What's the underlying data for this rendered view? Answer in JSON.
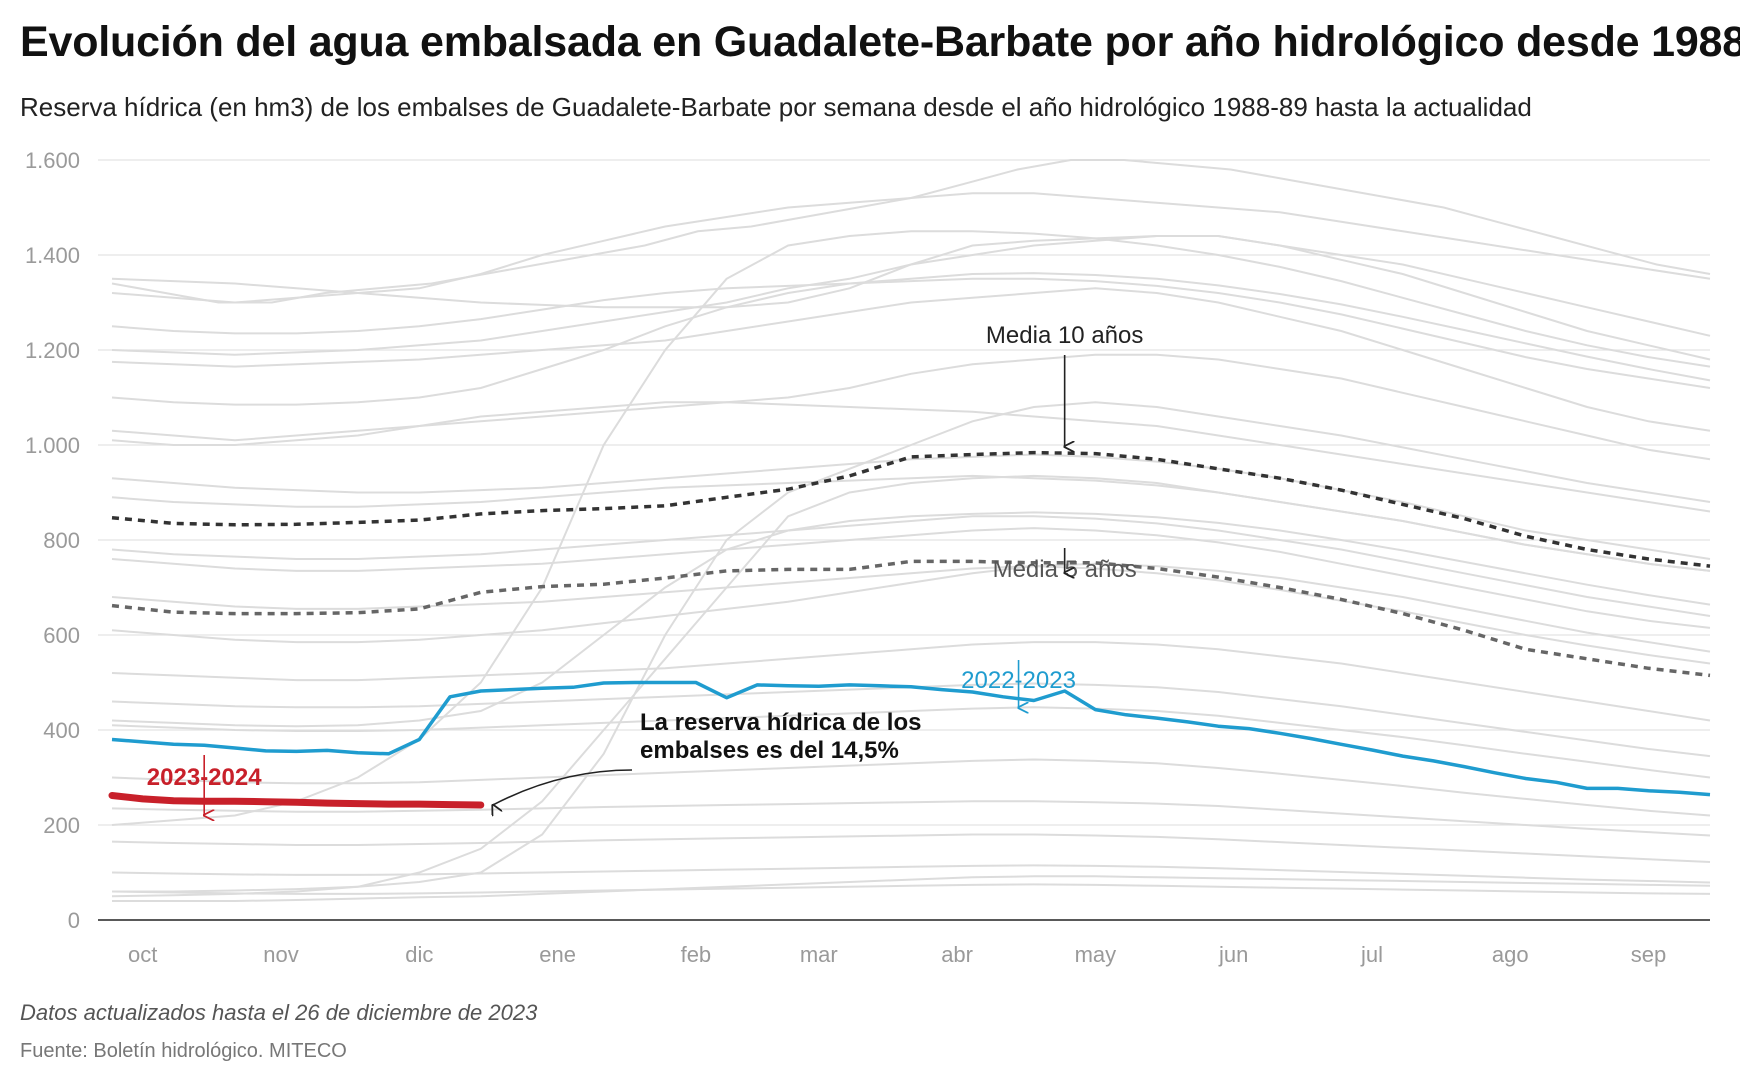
{
  "header": {
    "title": "Evolución del agua embalsada en Guadalete-Barbate por año hidrológico desde 1988",
    "subtitle": "Reserva hídrica (en hm3) de los embalses de Guadalete-Barbate por semana desde el año hidrológico 1988-89 hasta la actualidad"
  },
  "footer": {
    "note": "Datos actualizados hasta el 26 de diciembre de 2023",
    "source": "Fuente: Boletín hidrológico. MITECO"
  },
  "colors": {
    "background_series": "#dcdcdc",
    "current_year": "#c8202a",
    "previous_year": "#1f9ccf",
    "mean_10": "#333333",
    "mean_5": "#666666",
    "grid": "#e3e3e3",
    "ticks": "#9a9a9a"
  },
  "chart_data": {
    "type": "line",
    "x_unit": "semana del año hidrológico (oct–sep)",
    "xlim": [
      0,
      52
    ],
    "ylim": [
      0,
      1600
    ],
    "y_ticks": [
      0,
      200,
      400,
      600,
      800,
      1000,
      1200,
      1400,
      1600
    ],
    "y_tick_labels": [
      "0",
      "200",
      "400",
      "600",
      "800",
      "1.000",
      "1.200",
      "1.400",
      "1.600"
    ],
    "x_ticks": [
      1,
      5.5,
      10,
      14.5,
      19,
      23,
      27.5,
      32,
      36.5,
      41,
      45.5,
      50
    ],
    "x_tick_labels": [
      "oct",
      "nov",
      "dic",
      "ene",
      "feb",
      "mar",
      "abr",
      "may",
      "jun",
      "jul",
      "ago",
      "sep"
    ],
    "grid": true,
    "legend": "none",
    "highlighted_series": [
      {
        "name": "2023-2024",
        "role": "current",
        "x": [
          0,
          1,
          2,
          3,
          4,
          5,
          6,
          7,
          8,
          9,
          10,
          11,
          12
        ],
        "values": [
          262,
          255,
          251,
          250,
          250,
          249,
          248,
          246,
          245,
          244,
          244,
          243,
          242
        ]
      },
      {
        "name": "2022-2023",
        "role": "previous",
        "x": [
          0,
          1,
          2,
          3,
          4,
          5,
          6,
          7,
          8,
          9,
          10,
          11,
          12,
          13,
          14,
          15,
          16,
          17,
          18,
          19,
          20,
          21,
          22,
          23,
          24,
          25,
          26,
          27,
          28,
          29,
          30,
          31,
          32,
          33,
          34,
          35,
          36,
          37,
          38,
          39,
          40,
          41,
          42,
          43,
          44,
          45,
          46,
          47,
          48,
          49,
          50,
          51,
          52
        ],
        "values": [
          380,
          375,
          370,
          368,
          362,
          356,
          355,
          357,
          352,
          350,
          380,
          470,
          482,
          485,
          488,
          490,
          499,
          500,
          500,
          500,
          468,
          495,
          493,
          492,
          495,
          493,
          491,
          485,
          480,
          470,
          462,
          482,
          443,
          432,
          425,
          417,
          408,
          403,
          393,
          382,
          370,
          358,
          345,
          335,
          323,
          310,
          298,
          290,
          277,
          277,
          272,
          269,
          264
        ]
      }
    ],
    "reference_series": [
      {
        "name": "Media 10 años",
        "x": [
          0,
          2,
          4,
          6,
          8,
          10,
          12,
          14,
          16,
          18,
          20,
          22,
          24,
          26,
          28,
          30,
          32,
          34,
          36,
          38,
          40,
          42,
          44,
          46,
          48,
          50,
          52
        ],
        "values": [
          847,
          835,
          832,
          833,
          837,
          842,
          855,
          862,
          866,
          872,
          890,
          907,
          935,
          975,
          980,
          984,
          982,
          970,
          950,
          930,
          905,
          875,
          845,
          808,
          780,
          760,
          745
        ]
      },
      {
        "name": "Media 5 años",
        "x": [
          0,
          2,
          4,
          6,
          8,
          10,
          12,
          14,
          16,
          18,
          20,
          22,
          24,
          26,
          28,
          30,
          32,
          34,
          36,
          38,
          40,
          42,
          44,
          46,
          48,
          50,
          52
        ],
        "values": [
          662,
          648,
          645,
          645,
          647,
          655,
          690,
          702,
          707,
          720,
          735,
          738,
          738,
          755,
          755,
          752,
          752,
          740,
          722,
          700,
          675,
          645,
          610,
          570,
          550,
          530,
          515
        ]
      }
    ],
    "background_series": [
      {
        "values": [
          1340,
          1320,
          1300,
          1300,
          1320,
          1330,
          1340,
          1360,
          1380,
          1400,
          1420,
          1450,
          1460,
          1480,
          1500,
          1520,
          1550,
          1580,
          1600,
          1600,
          1590,
          1580,
          1560,
          1540,
          1520,
          1500,
          1470,
          1440,
          1410,
          1380,
          1360
        ]
      },
      {
        "values": [
          1320,
          1310,
          1300,
          1310,
          1320,
          1330,
          1360,
          1400,
          1430,
          1460,
          1480,
          1500,
          1510,
          1520,
          1530,
          1530,
          1520,
          1510,
          1500,
          1490,
          1470,
          1450,
          1430,
          1410,
          1390,
          1370,
          1350
        ]
      },
      {
        "values": [
          1350,
          1345,
          1340,
          1330,
          1320,
          1310,
          1300,
          1295,
          1290,
          1290,
          1290,
          1300,
          1330,
          1380,
          1420,
          1430,
          1435,
          1440,
          1440,
          1420,
          1400,
          1380,
          1350,
          1320,
          1290,
          1260,
          1230
        ]
      },
      {
        "values": [
          1200,
          1195,
          1190,
          1195,
          1200,
          1210,
          1220,
          1240,
          1260,
          1280,
          1300,
          1330,
          1350,
          1380,
          1400,
          1420,
          1430,
          1440,
          1440,
          1420,
          1390,
          1360,
          1320,
          1280,
          1240,
          1210,
          1180
        ]
      },
      {
        "values": [
          1175,
          1170,
          1165,
          1170,
          1175,
          1180,
          1190,
          1200,
          1210,
          1220,
          1240,
          1260,
          1280,
          1300,
          1310,
          1320,
          1330,
          1320,
          1300,
          1270,
          1240,
          1200,
          1160,
          1120,
          1080,
          1050,
          1030
        ]
      },
      {
        "values": [
          1030,
          1020,
          1010,
          1020,
          1030,
          1040,
          1050,
          1060,
          1070,
          1080,
          1090,
          1100,
          1120,
          1150,
          1170,
          1180,
          1190,
          1190,
          1180,
          1160,
          1140,
          1110,
          1080,
          1050,
          1020,
          990,
          970
        ]
      },
      {
        "values": [
          1010,
          1000,
          1000,
          1010,
          1020,
          1040,
          1060,
          1070,
          1080,
          1090,
          1090,
          1085,
          1080,
          1075,
          1070,
          1060,
          1050,
          1040,
          1020,
          1000,
          980,
          960,
          940,
          920,
          900,
          880,
          860
        ]
      },
      {
        "values": [
          930,
          920,
          910,
          905,
          900,
          900,
          905,
          910,
          920,
          930,
          940,
          950,
          960,
          970,
          975,
          980,
          975,
          965,
          950,
          930,
          905,
          880,
          850,
          820,
          800,
          780,
          760
        ]
      },
      {
        "values": [
          890,
          880,
          875,
          870,
          870,
          875,
          880,
          890,
          900,
          910,
          915,
          920,
          925,
          930,
          935,
          930,
          925,
          915,
          900,
          880,
          860,
          840,
          815,
          790,
          770,
          750,
          735
        ]
      },
      {
        "values": [
          780,
          770,
          765,
          760,
          760,
          765,
          770,
          780,
          790,
          800,
          810,
          820,
          830,
          840,
          850,
          850,
          845,
          835,
          820,
          800,
          780,
          755,
          730,
          705,
          680,
          660,
          640
        ]
      },
      {
        "values": [
          760,
          750,
          740,
          735,
          735,
          740,
          745,
          750,
          760,
          770,
          780,
          790,
          800,
          810,
          820,
          825,
          820,
          810,
          795,
          775,
          750,
          725,
          700,
          675,
          650,
          630,
          615
        ]
      },
      {
        "values": [
          680,
          670,
          660,
          655,
          655,
          660,
          665,
          670,
          680,
          690,
          700,
          710,
          720,
          730,
          740,
          745,
          740,
          730,
          715,
          695,
          672,
          650,
          625,
          600,
          578,
          558,
          540
        ]
      },
      {
        "values": [
          610,
          600,
          590,
          585,
          585,
          590,
          600,
          610,
          625,
          640,
          655,
          670,
          690,
          710,
          730,
          745,
          750,
          745,
          735,
          720,
          700,
          680,
          655,
          630,
          605,
          585,
          565
        ]
      },
      {
        "values": [
          520,
          515,
          510,
          505,
          505,
          510,
          515,
          520,
          525,
          530,
          540,
          550,
          560,
          570,
          580,
          585,
          585,
          580,
          570,
          555,
          540,
          520,
          500,
          480,
          460,
          440,
          420
        ]
      },
      {
        "values": [
          460,
          455,
          450,
          448,
          448,
          450,
          455,
          460,
          465,
          470,
          475,
          480,
          485,
          490,
          495,
          498,
          495,
          490,
          480,
          465,
          450,
          432,
          414,
          396,
          378,
          360,
          345
        ]
      },
      {
        "values": [
          410,
          405,
          400,
          398,
          398,
          400,
          405,
          410,
          415,
          420,
          425,
          430,
          435,
          440,
          445,
          448,
          445,
          440,
          430,
          415,
          400,
          385,
          368,
          350,
          333,
          316,
          300
        ]
      },
      {
        "values": [
          300,
          295,
          290,
          288,
          288,
          290,
          295,
          300,
          305,
          310,
          315,
          320,
          325,
          330,
          335,
          338,
          335,
          330,
          320,
          308,
          295,
          282,
          268,
          255,
          242,
          230,
          220
        ]
      },
      {
        "values": [
          235,
          232,
          230,
          228,
          228,
          230,
          232,
          235,
          238,
          240,
          242,
          244,
          246,
          248,
          250,
          250,
          248,
          245,
          240,
          232,
          224,
          216,
          208,
          200,
          192,
          185,
          178
        ]
      },
      {
        "values": [
          165,
          162,
          160,
          158,
          158,
          160,
          162,
          165,
          168,
          170,
          172,
          174,
          176,
          178,
          180,
          180,
          178,
          175,
          170,
          164,
          158,
          152,
          146,
          140,
          134,
          128,
          122
        ]
      },
      {
        "values": [
          100,
          98,
          96,
          95,
          95,
          96,
          98,
          100,
          102,
          104,
          106,
          108,
          110,
          112,
          114,
          115,
          114,
          112,
          109,
          105,
          101,
          97,
          93,
          89,
          85,
          82,
          79
        ]
      },
      {
        "values": [
          60,
          58,
          56,
          55,
          55,
          56,
          58,
          60,
          62,
          64,
          66,
          68,
          70,
          72,
          74,
          75,
          74,
          72,
          70,
          68,
          66,
          64,
          62,
          60,
          58,
          56,
          55
        ]
      },
      {
        "values": [
          40,
          40,
          40,
          42,
          45,
          48,
          50,
          55,
          60,
          65,
          70,
          75,
          80,
          85,
          90,
          92,
          92,
          90,
          88,
          86,
          84,
          82,
          80,
          78,
          76,
          74,
          72
        ]
      },
      {
        "values": [
          50,
          52,
          55,
          60,
          70,
          100,
          150,
          250,
          400,
          550,
          700,
          850,
          900,
          920,
          930,
          935,
          930,
          920,
          900,
          880,
          860,
          840,
          815,
          790,
          770,
          750,
          735
        ]
      },
      {
        "values": [
          60,
          60,
          62,
          65,
          70,
          80,
          100,
          180,
          350,
          600,
          800,
          900,
          950,
          1000,
          1050,
          1080,
          1090,
          1080,
          1060,
          1040,
          1020,
          995,
          970,
          945,
          920,
          900,
          880
        ]
      },
      {
        "values": [
          200,
          210,
          220,
          250,
          300,
          380,
          500,
          700,
          1000,
          1200,
          1350,
          1420,
          1440,
          1450,
          1450,
          1445,
          1435,
          1420,
          1400,
          1375,
          1345,
          1310,
          1275,
          1240,
          1210,
          1185,
          1165
        ]
      },
      {
        "values": [
          420,
          415,
          410,
          408,
          410,
          420,
          440,
          500,
          600,
          700,
          780,
          820,
          840,
          850,
          855,
          858,
          855,
          848,
          836,
          820,
          800,
          778,
          754,
          730,
          706,
          684,
          664
        ]
      },
      {
        "values": [
          1100,
          1090,
          1085,
          1085,
          1090,
          1100,
          1120,
          1160,
          1200,
          1250,
          1290,
          1320,
          1340,
          1350,
          1360,
          1362,
          1358,
          1350,
          1336,
          1318,
          1296,
          1270,
          1242,
          1214,
          1186,
          1160,
          1136
        ]
      },
      {
        "values": [
          1250,
          1240,
          1235,
          1235,
          1240,
          1250,
          1265,
          1285,
          1305,
          1320,
          1330,
          1335,
          1340,
          1345,
          1350,
          1350,
          1345,
          1335,
          1320,
          1300,
          1275,
          1245,
          1215,
          1185,
          1160,
          1140,
          1120
        ]
      }
    ],
    "annotations": [
      {
        "id": "mean10",
        "text": "Media 10 años"
      },
      {
        "id": "mean5",
        "text": "Media 5 años"
      },
      {
        "id": "prev",
        "text": "2022-2023"
      },
      {
        "id": "curr",
        "text": "2023-2024"
      },
      {
        "id": "note_line1",
        "text": "La reserva hídrica de los"
      },
      {
        "id": "note_line2",
        "text": "embalses es del 14,5%"
      }
    ]
  }
}
